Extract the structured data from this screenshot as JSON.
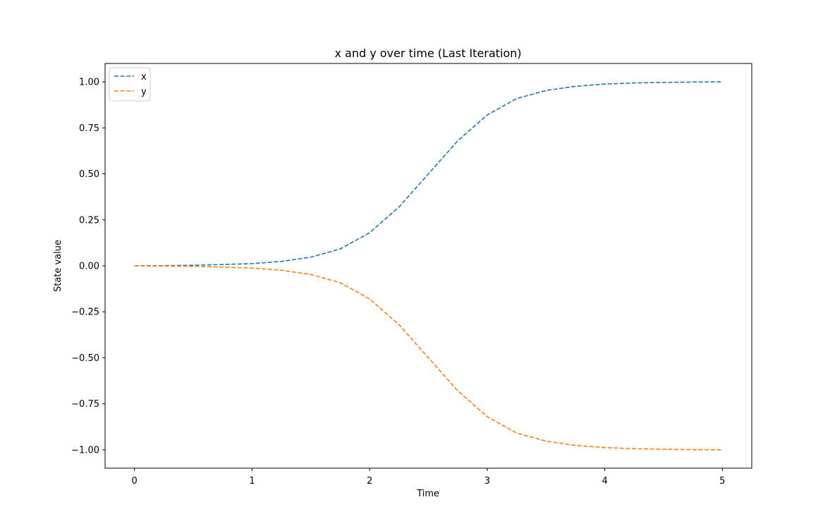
{
  "chart_data": {
    "type": "line",
    "title": "x and y over time (Last Iteration)",
    "xlabel": "Time",
    "ylabel": "State value",
    "xlim": [
      -0.25,
      5.25
    ],
    "ylim": [
      -1.1,
      1.1
    ],
    "xticks": [
      0,
      1,
      2,
      3,
      4,
      5
    ],
    "yticks": [
      1.0,
      0.75,
      0.5,
      0.25,
      0.0,
      -0.25,
      -0.5,
      -0.75,
      -1.0
    ],
    "ytick_labels": [
      "1.00",
      "0.75",
      "0.50",
      "0.25",
      "0.00",
      "−0.25",
      "−0.50",
      "−0.75",
      "−1.00"
    ],
    "grid": false,
    "legend_position": "top-left",
    "series": [
      {
        "name": "x",
        "color": "#1f77b4",
        "line_style": "dashed",
        "x": [
          0,
          0.25,
          0.5,
          0.75,
          1.0,
          1.25,
          1.5,
          1.75,
          2.0,
          2.25,
          2.5,
          2.75,
          3.0,
          3.25,
          3.5,
          3.75,
          4.0,
          4.25,
          4.5,
          4.75,
          5.0
        ],
        "y": [
          0.0,
          0.001,
          0.003,
          0.007,
          0.012,
          0.024,
          0.047,
          0.092,
          0.18,
          0.32,
          0.5,
          0.68,
          0.82,
          0.909,
          0.953,
          0.976,
          0.988,
          0.994,
          0.997,
          0.999,
          1.0
        ]
      },
      {
        "name": "y",
        "color": "#ff7f0e",
        "line_style": "dashed",
        "x": [
          0,
          0.25,
          0.5,
          0.75,
          1.0,
          1.25,
          1.5,
          1.75,
          2.0,
          2.25,
          2.5,
          2.75,
          3.0,
          3.25,
          3.5,
          3.75,
          4.0,
          4.25,
          4.5,
          4.75,
          5.0
        ],
        "y": [
          0.0,
          -0.001,
          -0.003,
          -0.007,
          -0.012,
          -0.024,
          -0.047,
          -0.092,
          -0.18,
          -0.32,
          -0.5,
          -0.68,
          -0.82,
          -0.909,
          -0.953,
          -0.976,
          -0.988,
          -0.994,
          -0.997,
          -0.999,
          -1.0
        ]
      }
    ]
  }
}
